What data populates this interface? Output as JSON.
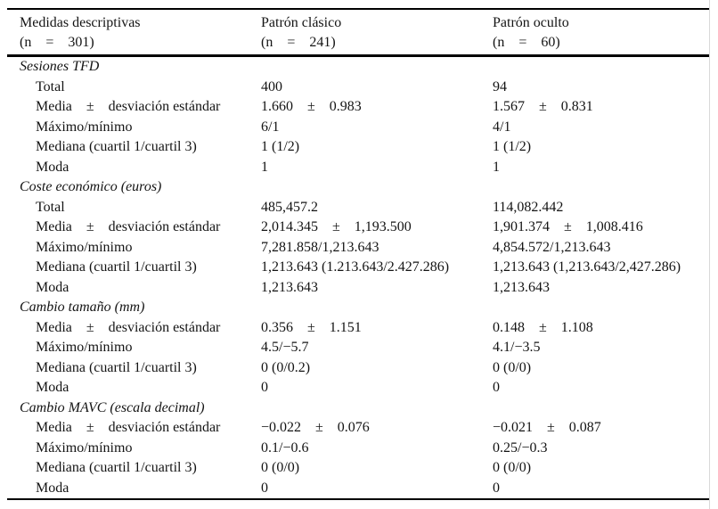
{
  "table": {
    "columns": [
      {
        "line1": "Medidas descriptivas",
        "line2": "(n = 301)"
      },
      {
        "line1": "Patrón clásico",
        "line2": "(n = 241)"
      },
      {
        "line1": "Patrón oculto",
        "line2": "(n = 60)"
      }
    ],
    "sections": [
      {
        "title": "Sesiones TFD",
        "rows": [
          {
            "label": "Total",
            "clasico": "400",
            "oculto": "94"
          },
          {
            "label": "Media ± desviación estándar",
            "clasico": "1.660 ± 0.983",
            "oculto": "1.567 ± 0.831"
          },
          {
            "label": "Máximo/mínimo",
            "clasico": "6/1",
            "oculto": "4/1"
          },
          {
            "label": "Mediana (cuartil 1/cuartil 3)",
            "clasico": "1 (1/2)",
            "oculto": "1 (1/2)"
          },
          {
            "label": "Moda",
            "clasico": "1",
            "oculto": "1"
          }
        ]
      },
      {
        "title": "Coste económico (euros)",
        "rows": [
          {
            "label": "Total",
            "clasico": "485,457.2",
            "oculto": "114,082.442"
          },
          {
            "label": "Media ± desviación estándar",
            "clasico": "2,014.345 ± 1,193.500",
            "oculto": "1,901.374 ± 1,008.416"
          },
          {
            "label": "Máximo/mínimo",
            "clasico": "7,281.858/1,213.643",
            "oculto": "4,854.572/1,213.643"
          },
          {
            "label": "Mediana (cuartil 1/cuartil 3)",
            "clasico": "1,213.643 (1.213.643/2.427.286)",
            "oculto": "1,213.643 (1,213.643/2,427.286)"
          },
          {
            "label": "Moda",
            "clasico": "1,213.643",
            "oculto": "1,213.643"
          }
        ]
      },
      {
        "title": "Cambio tamaño (mm)",
        "rows": [
          {
            "label": "Media ± desviación estándar",
            "clasico": "0.356 ± 1.151",
            "oculto": "0.148 ± 1.108"
          },
          {
            "label": "Máximo/mínimo",
            "clasico": "4.5/−5.7",
            "oculto": "4.1/−3.5"
          },
          {
            "label": "Mediana (cuartil 1/cuartil 3)",
            "clasico": "0 (0/0.2)",
            "oculto": "0 (0/0)"
          },
          {
            "label": "Moda",
            "clasico": "0",
            "oculto": "0"
          }
        ]
      },
      {
        "title": "Cambio MAVC (escala decimal)",
        "rows": [
          {
            "label": "Media ± desviación estándar",
            "clasico": "−0.022 ± 0.076",
            "oculto": "−0.021 ± 0.087"
          },
          {
            "label": "Máximo/mínimo",
            "clasico": "0.1/−0.6",
            "oculto": "0.25/−0.3"
          },
          {
            "label": "Mediana (cuartil 1/cuartil 3)",
            "clasico": "0 (0/0)",
            "oculto": "0 (0/0)"
          },
          {
            "label": "Moda",
            "clasico": "0",
            "oculto": "0"
          }
        ]
      }
    ]
  }
}
